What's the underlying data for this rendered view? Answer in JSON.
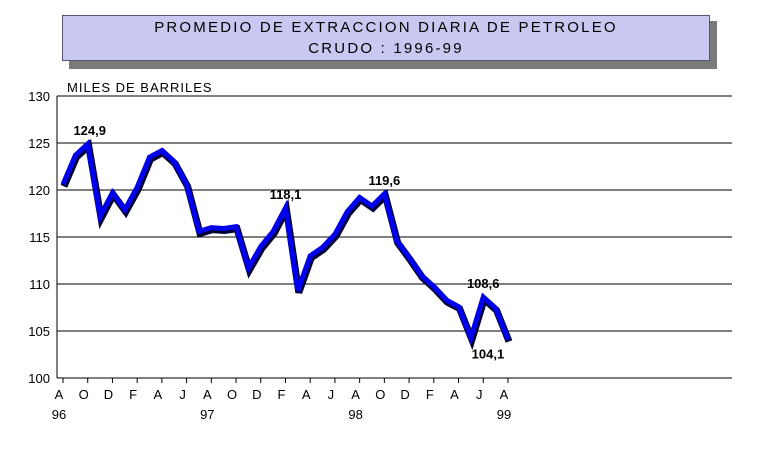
{
  "chart_data": {
    "type": "line",
    "title_line1": "PROMEDIO DE EXTRACCION DIARIA DE PETROLEO",
    "title_line2": "CRUDO : 1996-99",
    "ylabel": "MILES DE BARRILES",
    "ylim": [
      100,
      130
    ],
    "yticks": [
      100,
      105,
      110,
      115,
      120,
      125,
      130
    ],
    "grid": true,
    "x_month_labels": [
      "A",
      "O",
      "D",
      "F",
      "A",
      "J",
      "A",
      "O",
      "D",
      "F",
      "A",
      "J",
      "A",
      "O",
      "D",
      "F",
      "A",
      "J",
      "A"
    ],
    "x_year_labels": [
      "96",
      "97",
      "98",
      "99"
    ],
    "series": [
      {
        "color": "#0000ee",
        "values": [
          120.6,
          123.7,
          124.9,
          117.2,
          119.7,
          117.9,
          120.3,
          123.5,
          124.2,
          123.0,
          120.6,
          115.6,
          116.0,
          115.9,
          116.1,
          111.7,
          114.0,
          115.6,
          118.1,
          109.3,
          113.0,
          113.9,
          115.3,
          117.7,
          119.2,
          118.3,
          119.6,
          114.6,
          112.8,
          110.9,
          109.7,
          108.3,
          107.6,
          104.3,
          108.6,
          107.4,
          104.1
        ]
      }
    ],
    "data_labels": [
      {
        "index": 2,
        "text": "124,9"
      },
      {
        "index": 18,
        "text": "118,1"
      },
      {
        "index": 26,
        "text": "119,6"
      },
      {
        "index": 34,
        "text": "108,6"
      },
      {
        "index": 36,
        "text": "104,1"
      }
    ]
  }
}
